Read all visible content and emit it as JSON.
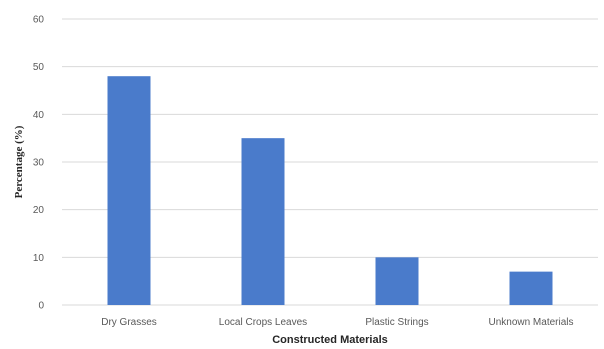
{
  "chart_data": {
    "type": "bar",
    "categories": [
      "Dry Grasses",
      "Local Crops Leaves",
      "Plastic Strings",
      "Unknown Materials"
    ],
    "values": [
      48,
      35,
      10,
      7
    ],
    "xlabel": "Constructed Materials",
    "ylabel": "Percentage (%)",
    "ylim": [
      0,
      60
    ],
    "yticks": [
      0,
      10,
      20,
      30,
      40,
      50,
      60
    ],
    "grid": true,
    "bar_color": "#4a7bcb"
  }
}
